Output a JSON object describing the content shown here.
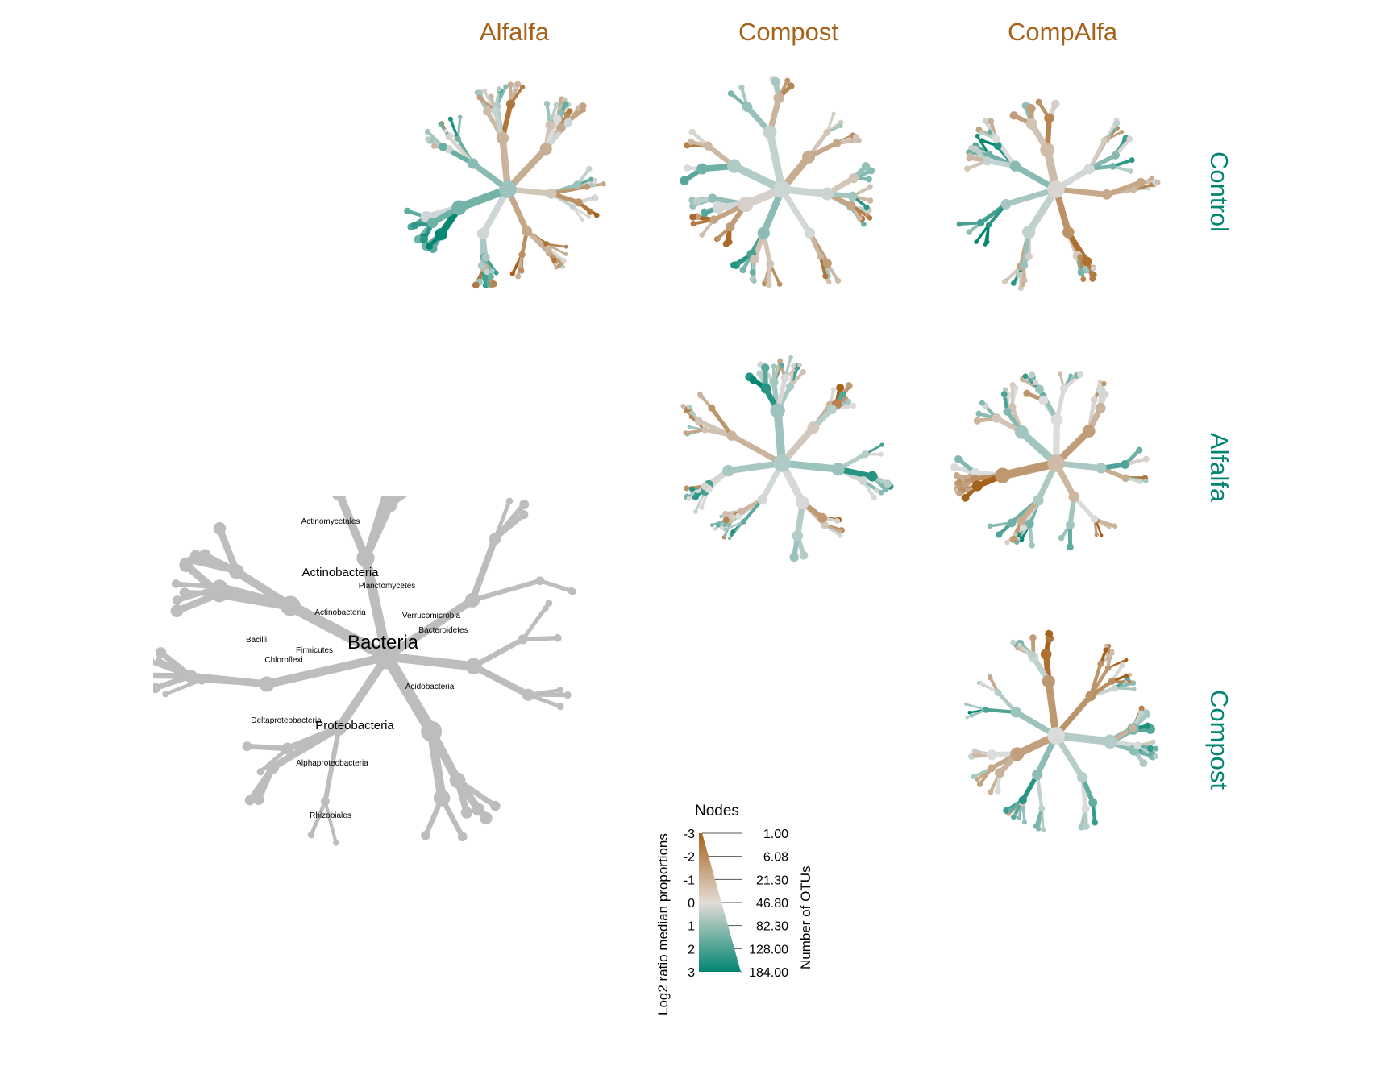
{
  "columns": [
    "Alfalfa",
    "Compost",
    "CompAlfa"
  ],
  "rows": [
    "Control",
    "Alfalfa",
    "Compost"
  ],
  "colors": {
    "negative": "#a6611a",
    "neutral": "#dcdcdc",
    "positive": "#018571",
    "key_tree": "#bdbdbd",
    "column_label": "#a6611a",
    "row_label": "#018571"
  },
  "key_tree": {
    "root_label": "Bacteria",
    "major_labels": [
      "Actinobacteria",
      "Proteobacteria",
      "Actinobacteria",
      "Bacteroidetes",
      "Acidobacteria",
      "Verrucomicrobia",
      "Alphaproteobacteria",
      "Deltaproteobacteria",
      "Firmicutes",
      "Chloroflexi",
      "Planctomycetes",
      "Actinomycetales",
      "Rhizobiales",
      "Bacilli"
    ]
  },
  "legend": {
    "nodes_title": "Nodes",
    "color_axis_title": "Log2 ratio median proportions",
    "size_axis_title": "Number of OTUs",
    "color_ticks": [
      "-3",
      "-2",
      "-1",
      "0",
      "1",
      "2",
      "3"
    ],
    "size_ticks": [
      "1.00",
      "6.08",
      "21.30",
      "46.80",
      "82.30",
      "128.00",
      "184.00"
    ]
  }
}
